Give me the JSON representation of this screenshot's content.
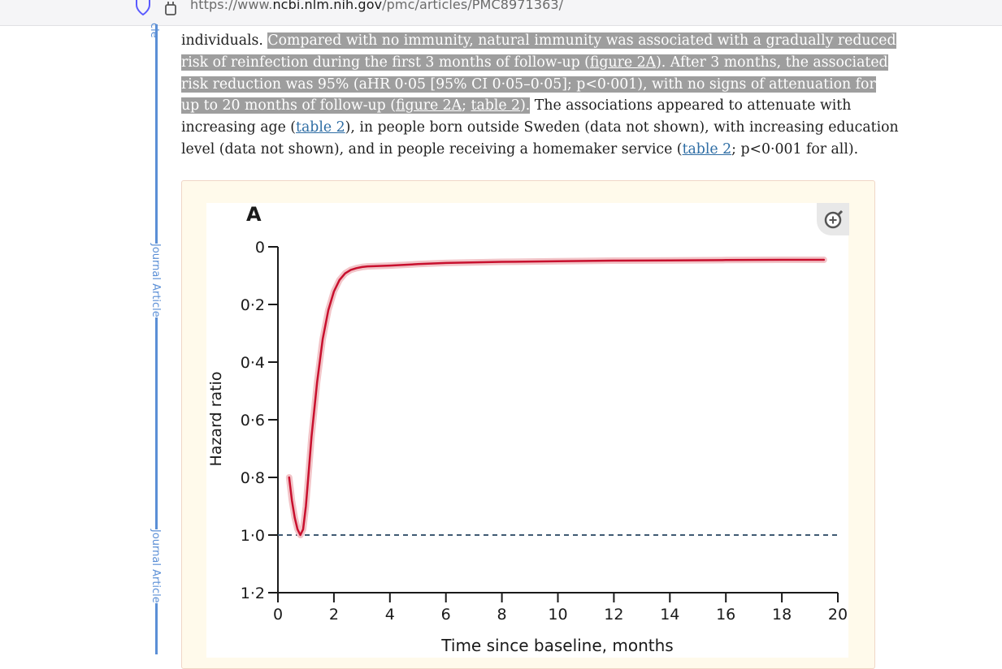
{
  "browser": {
    "url_prefix": "https://www.",
    "url_domain": "ncbi.nlm.nih.gov",
    "url_path": "/pmc/articles/PMC8971363/"
  },
  "sidebar": {
    "labels": [
      "Journal Article",
      "Journal Article"
    ],
    "top_fragment": "cle"
  },
  "article": {
    "line1_plain": "individuals.",
    "line1_hl": "Compared with no immunity, natural immunity was associated with a gradually reduced",
    "line2_a": "risk of reinfection during the first 3 months of follow-up (",
    "line2_link": "figure 2A",
    "line2_b": "). After 3 months, the associated",
    "line3_hl": "risk reduction was 95% (aHR 0·05 [95% CI 0·05–0·05]; p<0·001), with no signs of attenuation for",
    "line4_a": "up to 20 months of follow-up (",
    "line4_link1": "figure 2A",
    "line4_sep": "; ",
    "line4_link2": "table 2",
    "line4_b": ").",
    "line4_plain": " The associations appeared to attenuate with",
    "line5_a": "increasing age (",
    "line5_link": "table 2",
    "line5_b": "), in people born outside Sweden (data not shown), with increasing education",
    "line6_a": "level (data not shown), and in people receiving a homemaker service (",
    "line6_link": "table 2",
    "line6_b": "; p<0·001 for all)."
  },
  "colors": {
    "curve": "#c8102e",
    "ci_band": "#f2c4c8",
    "reference_line": "#3f5a73",
    "highlight": "#9e9e9e",
    "link": "#2e6da4",
    "figure_bg": "#fffaeb"
  },
  "figure": {
    "zoom_icon": "zoom-in-magnifier-icon"
  },
  "chart_data": {
    "type": "line",
    "panel_label": "A",
    "xlabel": "Time since baseline, months",
    "ylabel": "Hazard ratio",
    "xlim": [
      0,
      20
    ],
    "ylim": [
      0,
      1.2
    ],
    "y_inverted": true,
    "x_ticks": [
      "0",
      "2",
      "4",
      "6",
      "8",
      "10",
      "12",
      "14",
      "16",
      "18",
      "20"
    ],
    "y_ticks": [
      "0",
      "0·2",
      "0·4",
      "0·6",
      "0·8",
      "1·0",
      "1·2"
    ],
    "reference_line": {
      "y": 1.0,
      "style": "dashed"
    },
    "series": [
      {
        "x": [
          0.4,
          0.5,
          0.6,
          0.7,
          0.8,
          0.9,
          1.0,
          1.1,
          1.2,
          1.4,
          1.6,
          1.8,
          2.0,
          2.2,
          2.4,
          2.6,
          2.8,
          3.0,
          3.2,
          3.5,
          4.0,
          5.0,
          6.0,
          8.0,
          10.0,
          12.0,
          14.0,
          16.0,
          18.0,
          19.5
        ],
        "y": [
          0.8,
          0.88,
          0.94,
          0.98,
          1.0,
          0.98,
          0.9,
          0.78,
          0.66,
          0.47,
          0.32,
          0.22,
          0.155,
          0.115,
          0.092,
          0.08,
          0.074,
          0.07,
          0.068,
          0.067,
          0.065,
          0.06,
          0.056,
          0.052,
          0.05,
          0.048,
          0.047,
          0.046,
          0.045,
          0.045
        ]
      }
    ]
  }
}
